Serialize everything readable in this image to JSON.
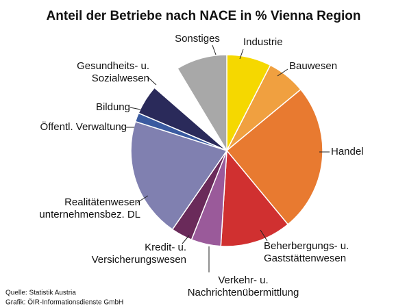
{
  "chart_data": {
    "type": "pie",
    "title": "Anteil der Betriebe nach NACE in % Vienna Region",
    "categories": [
      "Industrie",
      "Bauwesen",
      "Handel",
      "Beherbergungs- u.\nGaststättenwesen",
      "Verkehr- u.\nNachrichtenübermittlung",
      "Kredit- u.\nVersicherungswesen",
      "Realitätenwesen\nunternehmensbez. DL",
      "Öffentl. Verwaltung",
      "Bildung",
      "Gesundheits- u.\nSozialwesen",
      "Sonstiges"
    ],
    "values": [
      7.5,
      6.5,
      25,
      12,
      5,
      3.6,
      20.3,
      1.5,
      5,
      5,
      8.6
    ],
    "colors": [
      "#f5d800",
      "#f0a040",
      "#e87a30",
      "#d03030",
      "#9a5a9a",
      "#6a2a5a",
      "#8080b0",
      "#3a5aa0",
      "#2a2a5a",
      "#ffffff",
      "#a8a8a8"
    ],
    "notes": [
      "Quelle: Statistik Austria",
      "Grafik: ÖIR-Informationsdienste GmbH"
    ]
  }
}
